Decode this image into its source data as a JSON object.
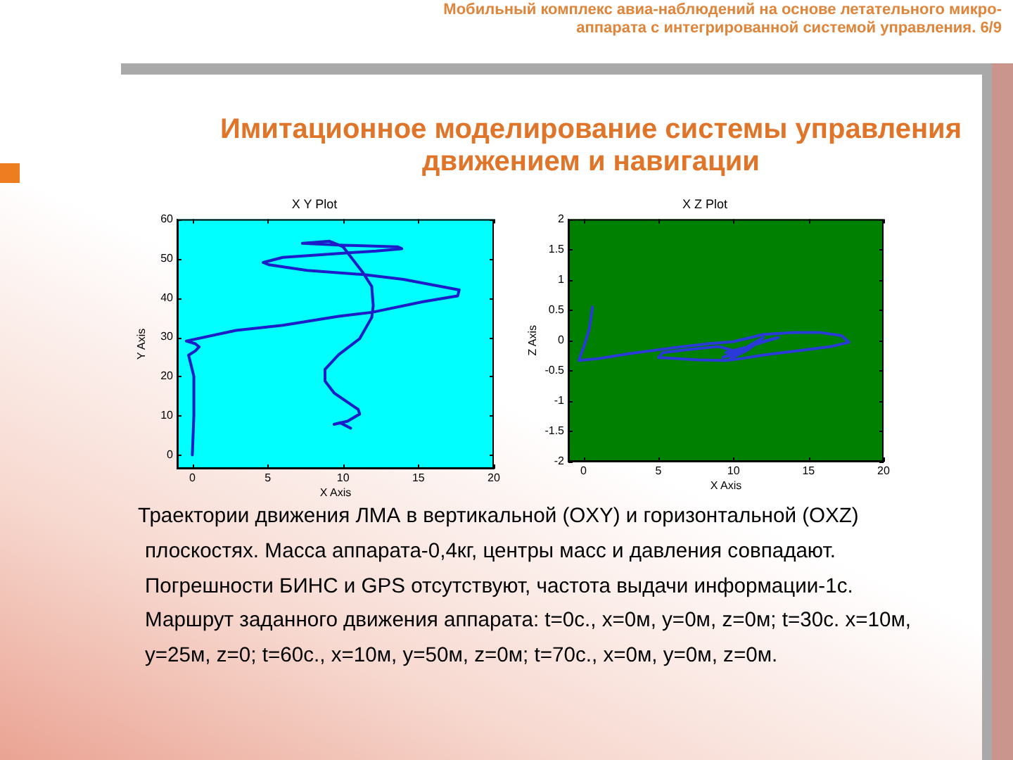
{
  "chart_data": [
    {
      "type": "line",
      "title": "X Y Plot",
      "xlabel": "X Axis",
      "ylabel": "Y Axis",
      "xlim": [
        -1,
        20
      ],
      "xticks": [
        0,
        5,
        10,
        15,
        20
      ],
      "ylim": [
        -3.5,
        60
      ],
      "yticks": [
        0,
        10,
        20,
        30,
        40,
        50,
        60
      ],
      "grid": false,
      "legend": false,
      "marker": "none",
      "series": [
        {
          "color": "#1c1cc8",
          "x": [
            0,
            0.1,
            0.1,
            -0.25,
            0.2,
            0.45,
            0.2,
            -0.4,
            2.9,
            6,
            9.7,
            11.9,
            15.3,
            17.6,
            17.7,
            14,
            11.4,
            7.6,
            5.1,
            4.7,
            6,
            9.7,
            12.2,
            13.9,
            13.6,
            10,
            7.3,
            9.1,
            10,
            10.6,
            11.3,
            11.9,
            12,
            11.9,
            11.1,
            9.7,
            8.8,
            8.8,
            9.4,
            10.3,
            11,
            11.1,
            10.3,
            9.4,
            9.8,
            10.5
          ],
          "values": [
            0,
            10,
            20,
            25.4,
            26.5,
            27.5,
            28.3,
            29,
            31.7,
            33,
            35.3,
            36.3,
            39,
            40.5,
            42,
            44.7,
            45.9,
            47,
            48.4,
            49,
            50.3,
            51.3,
            51.9,
            52.5,
            53,
            53.4,
            53.9,
            54.4,
            53,
            50,
            46.5,
            42.9,
            38,
            35,
            29.6,
            25.5,
            21.8,
            18.8,
            15.8,
            13.4,
            11.6,
            10.4,
            8.6,
            7.8,
            8.2,
            6.8
          ]
        }
      ],
      "annotations": [
        "Мобильный комплекс авиа-наблюдений на основе летательного микро-\nаппарата с интегрированной системой управления. 6/9",
        "Имитационное моделирование системы управления\nдвижением и навигации",
        "Траектории движения ЛМА в вертикальной (OXY) и горизонтальной (OXZ)\nплоскостях. Масса аппарата-0,4кг, центры масс и давления совпадают.\nПогрешности БИНС и GPS отсутствуют, частота выдачи информации-1с.\nМаршрут заданного движения аппарата: t=0с., x=0м, y=0м, z=0м; t=30с. x=10м,\ny=25м, z=0; t=60с., x=10м, y=50м, z=0м; t=70с., x=0м, y=0м, z=0м."
      ]
    },
    {
      "type": "line",
      "title": "X Z Plot",
      "xlabel": "X Axis",
      "ylabel": "Z Axis",
      "xlim": [
        -1,
        20
      ],
      "xticks": [
        0,
        5,
        10,
        15,
        20
      ],
      "ylim": [
        -2,
        2
      ],
      "yticks": [
        -2,
        -1.5,
        -1,
        -0.5,
        0,
        0.5,
        1,
        1.5,
        2
      ],
      "grid": false,
      "legend": false,
      "marker": "none",
      "series": [
        {
          "color": "#2a3ad8",
          "x": [
            0.6,
            0.4,
            0.1,
            -0.3,
            1,
            3,
            6,
            8.5,
            10,
            12,
            14,
            15.8,
            17.2,
            17.7,
            16.5,
            14,
            12,
            10.5,
            9.5,
            7.5,
            5,
            5.3,
            7,
            9,
            10.5,
            9.3,
            10.8,
            12,
            11,
            9.8,
            10.3,
            11.5,
            13,
            11,
            9.5
          ],
          "values": [
            0.55,
            0.2,
            -0.05,
            -0.33,
            -0.3,
            -0.22,
            -0.12,
            -0.05,
            -0.02,
            0.1,
            0.13,
            0.13,
            0.08,
            -0.03,
            -0.1,
            -0.18,
            -0.24,
            -0.3,
            -0.33,
            -0.32,
            -0.28,
            -0.2,
            -0.15,
            -0.1,
            -0.2,
            -0.28,
            -0.12,
            0.05,
            -0.15,
            -0.3,
            -0.22,
            -0.05,
            0.05,
            -0.1,
            -0.2
          ]
        }
      ]
    }
  ]
}
